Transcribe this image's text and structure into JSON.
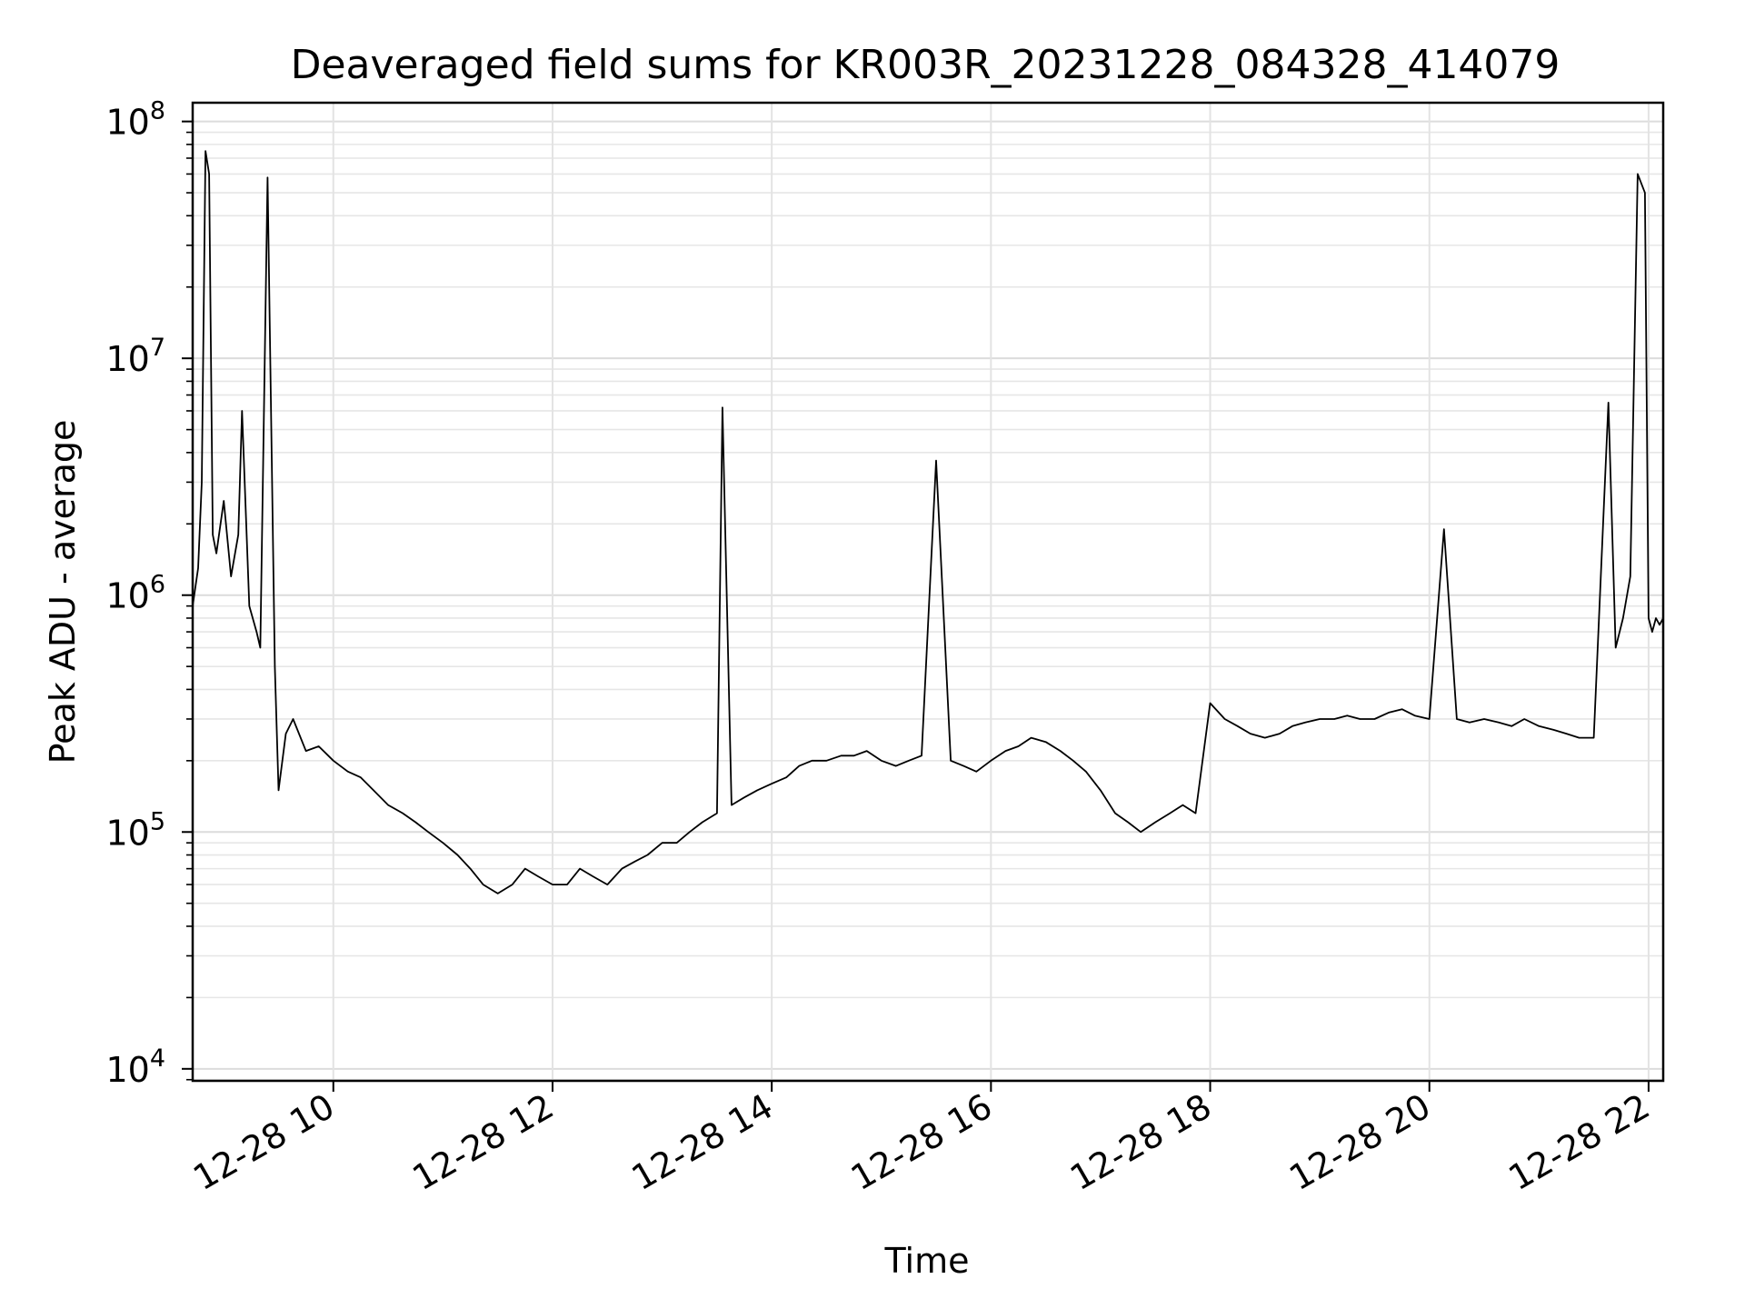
{
  "chart_data": {
    "type": "line",
    "title": "Deaveraged field sums for KR003R_20231228_084328_414079",
    "xlabel": "Time",
    "ylabel": "Peak ADU - average",
    "y_scale": "log",
    "ylim": [
      8900,
      120000000
    ],
    "xlim": [
      "12-28 08:43",
      "12-28 22:08"
    ],
    "x_ticks": [
      "12-28 10",
      "12-28 12",
      "12-28 14",
      "12-28 16",
      "12-28 18",
      "12-28 20",
      "12-28 22"
    ],
    "y_ticks": [
      {
        "base": "10",
        "exp": "4",
        "value": 10000
      },
      {
        "base": "10",
        "exp": "5",
        "value": 100000
      },
      {
        "base": "10",
        "exp": "6",
        "value": 1000000
      },
      {
        "base": "10",
        "exp": "7",
        "value": 10000000
      },
      {
        "base": "10",
        "exp": "8",
        "value": 100000000
      }
    ],
    "grid": true,
    "legend": "none",
    "line_color": "#000000",
    "series": [
      {
        "x": [
          "12-28 08:43",
          "12-28 08:46",
          "12-28 08:48",
          "12-28 08:50",
          "12-28 08:52",
          "12-28 08:54",
          "12-28 08:56",
          "12-28 09:00",
          "12-28 09:04",
          "12-28 09:08",
          "12-28 09:10",
          "12-28 09:14",
          "12-28 09:18",
          "12-28 09:20",
          "12-28 09:24",
          "12-28 09:28",
          "12-28 09:30",
          "12-28 09:34",
          "12-28 09:38",
          "12-28 09:45",
          "12-28 09:52",
          "12-28 10:00",
          "12-28 10:08",
          "12-28 10:15",
          "12-28 10:22",
          "12-28 10:30",
          "12-28 10:38",
          "12-28 10:45",
          "12-28 10:52",
          "12-28 11:00",
          "12-28 11:08",
          "12-28 11:15",
          "12-28 11:22",
          "12-28 11:30",
          "12-28 11:38",
          "12-28 11:45",
          "12-28 11:52",
          "12-28 12:00",
          "12-28 12:08",
          "12-28 12:15",
          "12-28 12:22",
          "12-28 12:30",
          "12-28 12:38",
          "12-28 12:45",
          "12-28 12:52",
          "12-28 13:00",
          "12-28 13:08",
          "12-28 13:15",
          "12-28 13:22",
          "12-28 13:30",
          "12-28 13:33",
          "12-28 13:38",
          "12-28 13:45",
          "12-28 13:52",
          "12-28 14:00",
          "12-28 14:08",
          "12-28 14:15",
          "12-28 14:22",
          "12-28 14:30",
          "12-28 14:38",
          "12-28 14:45",
          "12-28 14:52",
          "12-28 15:00",
          "12-28 15:08",
          "12-28 15:15",
          "12-28 15:22",
          "12-28 15:30",
          "12-28 15:38",
          "12-28 15:45",
          "12-28 15:52",
          "12-28 16:00",
          "12-28 16:08",
          "12-28 16:15",
          "12-28 16:22",
          "12-28 16:30",
          "12-28 16:38",
          "12-28 16:45",
          "12-28 16:52",
          "12-28 17:00",
          "12-28 17:08",
          "12-28 17:15",
          "12-28 17:22",
          "12-28 17:30",
          "12-28 17:38",
          "12-28 17:45",
          "12-28 17:52",
          "12-28 18:00",
          "12-28 18:08",
          "12-28 18:15",
          "12-28 18:22",
          "12-28 18:30",
          "12-28 18:38",
          "12-28 18:45",
          "12-28 18:52",
          "12-28 19:00",
          "12-28 19:08",
          "12-28 19:15",
          "12-28 19:22",
          "12-28 19:30",
          "12-28 19:38",
          "12-28 19:45",
          "12-28 19:52",
          "12-28 20:00",
          "12-28 20:08",
          "12-28 20:15",
          "12-28 20:22",
          "12-28 20:30",
          "12-28 20:38",
          "12-28 20:45",
          "12-28 20:52",
          "12-28 21:00",
          "12-28 21:08",
          "12-28 21:15",
          "12-28 21:22",
          "12-28 21:30",
          "12-28 21:38",
          "12-28 21:42",
          "12-28 21:46",
          "12-28 21:50",
          "12-28 21:54",
          "12-28 21:58",
          "12-28 22:00",
          "12-28 22:02",
          "12-28 22:04",
          "12-28 22:06",
          "12-28 22:08"
        ],
        "y": [
          900000,
          1300000,
          3000000,
          75000000,
          60000000,
          1800000,
          1500000,
          2500000,
          1200000,
          1800000,
          6000000,
          900000,
          700000,
          600000,
          58000000,
          500000,
          150000,
          260000,
          300000,
          220000,
          230000,
          200000,
          180000,
          170000,
          150000,
          130000,
          120000,
          110000,
          100000,
          90000,
          80000,
          70000,
          60000,
          55000,
          60000,
          70000,
          65000,
          60000,
          60000,
          70000,
          65000,
          60000,
          70000,
          75000,
          80000,
          90000,
          90000,
          100000,
          110000,
          120000,
          6200000,
          130000,
          140000,
          150000,
          160000,
          170000,
          190000,
          200000,
          200000,
          210000,
          210000,
          220000,
          200000,
          190000,
          200000,
          210000,
          3700000,
          200000,
          190000,
          180000,
          200000,
          220000,
          230000,
          250000,
          240000,
          220000,
          200000,
          180000,
          150000,
          120000,
          110000,
          100000,
          110000,
          120000,
          130000,
          120000,
          350000,
          300000,
          280000,
          260000,
          250000,
          260000,
          280000,
          290000,
          300000,
          300000,
          310000,
          300000,
          300000,
          320000,
          330000,
          310000,
          300000,
          1900000,
          300000,
          290000,
          300000,
          290000,
          280000,
          300000,
          280000,
          270000,
          260000,
          250000,
          250000,
          6500000,
          600000,
          800000,
          1200000,
          60000000,
          50000000,
          800000,
          700000,
          800000,
          750000,
          800000
        ]
      }
    ]
  }
}
